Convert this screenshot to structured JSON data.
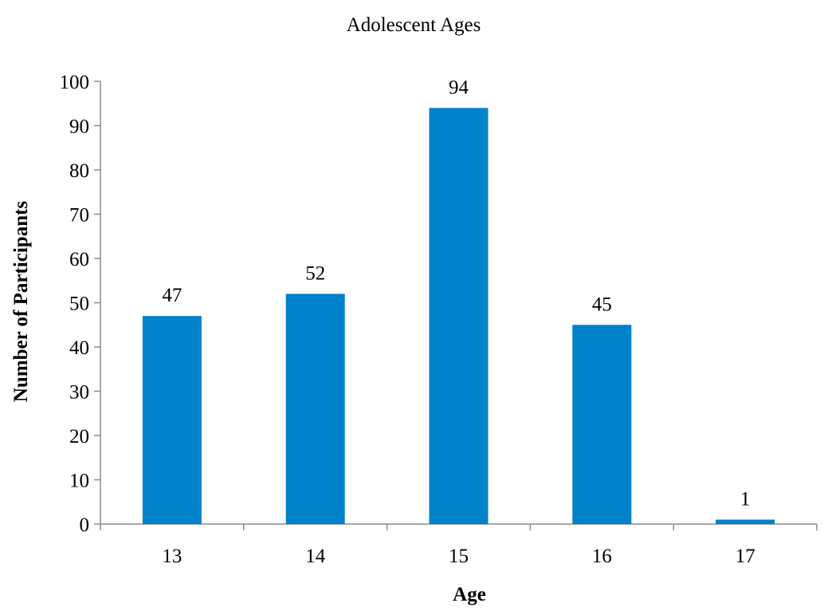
{
  "chart_data": {
    "type": "bar",
    "title": "Adolescent Ages",
    "xlabel": "Age",
    "ylabel": "Number of Participants",
    "categories": [
      "13",
      "14",
      "15",
      "16",
      "17"
    ],
    "values": [
      47,
      52,
      94,
      45,
      1
    ],
    "data_labels": [
      "47",
      "52",
      "94",
      "45",
      "1"
    ],
    "ylim": [
      0,
      100
    ],
    "yticks": [
      0,
      10,
      20,
      30,
      40,
      50,
      60,
      70,
      80,
      90,
      100
    ],
    "ytick_labels": [
      "0",
      "10",
      "20",
      "30",
      "40",
      "50",
      "60",
      "70",
      "80",
      "90",
      "100"
    ],
    "grid": false,
    "legend": "none",
    "colors": {
      "bar": "#0082CA",
      "axis": "#8C8C8C",
      "text": "#000000"
    }
  }
}
